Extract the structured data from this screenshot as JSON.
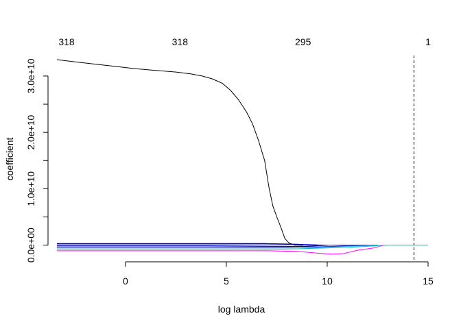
{
  "chart_data": {
    "type": "line",
    "title": "",
    "xlabel": "log lambda",
    "ylabel": "coefficient",
    "xlim": [
      -3.5,
      15
    ],
    "ylim": [
      -1500000000.0,
      34000000000.0
    ],
    "x_ticks": [
      {
        "value": 0,
        "label": "0"
      },
      {
        "value": 5,
        "label": "5"
      },
      {
        "value": 10,
        "label": "10"
      },
      {
        "value": 15,
        "label": "15"
      }
    ],
    "y_ticks": [
      {
        "value": 0,
        "label": "0.0e+00"
      },
      {
        "value": 10000000000,
        "label": "1.0e+10"
      },
      {
        "value": 20000000000,
        "label": "2.0e+10"
      },
      {
        "value": 30000000000,
        "label": "3.0e+10"
      }
    ],
    "top_axis": [
      {
        "value": -3.5,
        "label": "318"
      },
      {
        "value": 2.7,
        "label": "318"
      },
      {
        "value": 8.8,
        "label": "295"
      },
      {
        "value": 15,
        "label": "1"
      }
    ],
    "vline": {
      "x": 14.3,
      "style": "dashed",
      "color": "#000000"
    },
    "grid": false,
    "legend": "none",
    "series": [
      {
        "color": "#000000",
        "points": [
          [
            -3.4,
            32900000000.0
          ],
          [
            -2.5,
            32500000000.0
          ],
          [
            -1.5,
            32100000000.0
          ],
          [
            -0.5,
            31700000000.0
          ],
          [
            0.5,
            31300000000.0
          ],
          [
            1.5,
            31000000000.0
          ],
          [
            2.5,
            30700000000.0
          ],
          [
            3.2,
            30400000000.0
          ],
          [
            3.8,
            30000000000.0
          ],
          [
            4.3,
            29500000000.0
          ],
          [
            4.8,
            28700000000.0
          ],
          [
            5.2,
            27500000000.0
          ],
          [
            5.6,
            25800000000.0
          ],
          [
            6.0,
            23600000000.0
          ],
          [
            6.3,
            21500000000.0
          ],
          [
            6.6,
            18500000000.0
          ],
          [
            6.9,
            15000000000.0
          ],
          [
            7.1,
            10500000000.0
          ],
          [
            7.3,
            7000000000.0
          ],
          [
            7.5,
            5000000000.0
          ],
          [
            7.7,
            3200000000.0
          ],
          [
            7.9,
            1200000000.0
          ],
          [
            8.1,
            400000000.0
          ],
          [
            8.4,
            0.0
          ],
          [
            8.8,
            0.0
          ]
        ]
      },
      {
        "color": "#0000ff",
        "points": [
          [
            -3.4,
            300000000.0
          ],
          [
            3.0,
            300000000.0
          ],
          [
            6.9,
            300000000.0
          ],
          [
            8.2,
            200000000.0
          ],
          [
            9.0,
            100000000.0
          ],
          [
            10.0,
            0.0
          ],
          [
            12.5,
            0.0
          ]
        ]
      },
      {
        "color": "#00008b",
        "points": [
          [
            -3.4,
            200000000.0
          ],
          [
            2.5,
            200000000.0
          ],
          [
            7.0,
            200000000.0
          ],
          [
            8.5,
            100000000.0
          ],
          [
            9.5,
            0.0
          ]
        ]
      },
      {
        "color": "#0000cd",
        "points": [
          [
            -3.4,
            -100000000.0
          ],
          [
            4.0,
            -100000000.0
          ],
          [
            8.0,
            -200000000.0
          ],
          [
            9.6,
            -300000000.0
          ],
          [
            10.5,
            -200000000.0
          ],
          [
            12.0,
            0.0
          ]
        ]
      },
      {
        "color": "#000080",
        "points": [
          [
            -3.4,
            -300000000.0
          ],
          [
            -2.5,
            -300000000.0
          ],
          [
            1.0,
            -300000000.0
          ],
          [
            8.0,
            -300000000.0
          ],
          [
            8.8,
            -200000000.0
          ],
          [
            9.5,
            -100000000.0
          ],
          [
            10.0,
            0.0
          ]
        ]
      },
      {
        "color": "#1e90ff",
        "points": [
          [
            -3.4,
            -500000000.0
          ],
          [
            5.0,
            -500000000.0
          ],
          [
            8.0,
            -500000000.0
          ],
          [
            9.5,
            -400000000.0
          ],
          [
            11.0,
            -200000000.0
          ],
          [
            12.5,
            0.0
          ]
        ]
      },
      {
        "color": "#00bfbf",
        "points": [
          [
            -3.4,
            -700000000.0
          ],
          [
            3.0,
            -700000000.0
          ],
          [
            8.0,
            -700000000.0
          ],
          [
            10.0,
            -500000000.0
          ],
          [
            11.5,
            -300000000.0
          ],
          [
            12.5,
            -100000000.0
          ],
          [
            13.0,
            0.0
          ],
          [
            15.0,
            0.0
          ]
        ]
      },
      {
        "color": "#ff00ff",
        "points": [
          [
            -3.4,
            -1000000000.0
          ],
          [
            2.0,
            -1000000000.0
          ],
          [
            7.0,
            -1000000000.0
          ],
          [
            8.5,
            -1100000000.0
          ],
          [
            9.5,
            -1400000000.0
          ],
          [
            10.2,
            -1600000000.0
          ],
          [
            10.8,
            -1500000000.0
          ],
          [
            11.5,
            -900000000.0
          ],
          [
            12.3,
            -500000000.0
          ],
          [
            12.8,
            0.0
          ]
        ]
      }
    ]
  }
}
